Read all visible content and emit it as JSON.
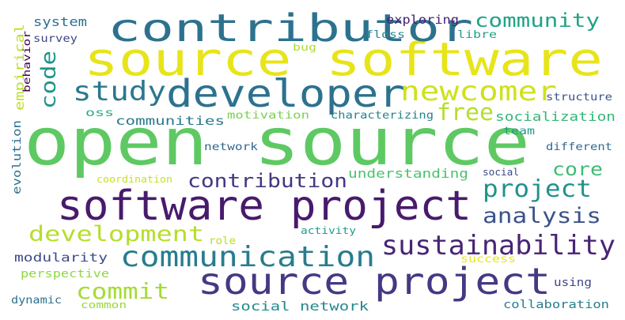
{
  "words": [
    {
      "text": "open source",
      "color": "#5ec962"
    },
    {
      "text": "source software",
      "color": "#e7e419"
    },
    {
      "text": "software project",
      "color": "#481a6c"
    },
    {
      "text": "contributor",
      "color": "#2c728e"
    },
    {
      "text": "developer",
      "color": "#2c728e"
    },
    {
      "text": "source project",
      "color": "#443983"
    },
    {
      "text": "communication",
      "color": "#287c8e"
    },
    {
      "text": "sustainability",
      "color": "#482475"
    },
    {
      "text": "newcomer",
      "color": "#d0e11c"
    },
    {
      "text": "study",
      "color": "#2a788e"
    },
    {
      "text": "development",
      "color": "#b5de2b"
    },
    {
      "text": "contribution",
      "color": "#453781"
    },
    {
      "text": "project",
      "color": "#21918c"
    },
    {
      "text": "analysis",
      "color": "#3b528b"
    },
    {
      "text": "free",
      "color": "#b5de2b"
    },
    {
      "text": "community",
      "color": "#20a386"
    },
    {
      "text": "commit",
      "color": "#a5db36"
    },
    {
      "text": "core",
      "color": "#3dbc74"
    },
    {
      "text": "code",
      "color": "#1f968b"
    },
    {
      "text": "communities",
      "color": "#2a788e"
    },
    {
      "text": "system",
      "color": "#2e6f8e"
    },
    {
      "text": "exploring",
      "color": "#482173"
    },
    {
      "text": "empirical",
      "color": "#bddf26"
    },
    {
      "text": "understanding",
      "color": "#4ac16d"
    },
    {
      "text": "socialization",
      "color": "#35b779"
    },
    {
      "text": "social network",
      "color": "#23888e"
    },
    {
      "text": "modularity",
      "color": "#3e4a89"
    },
    {
      "text": "floss",
      "color": "#24878e"
    },
    {
      "text": "libre",
      "color": "#1fa187"
    },
    {
      "text": "survey",
      "color": "#414487"
    },
    {
      "text": "behavior",
      "color": "#440154"
    },
    {
      "text": "bug",
      "color": "#addc30"
    },
    {
      "text": "oss",
      "color": "#25ab82"
    },
    {
      "text": "motivation",
      "color": "#7ad151"
    },
    {
      "text": "characterizing",
      "color": "#26828e"
    },
    {
      "text": "structure",
      "color": "#3b528b"
    },
    {
      "text": "team",
      "color": "#1e9c89"
    },
    {
      "text": "network",
      "color": "#31688e"
    },
    {
      "text": "different",
      "color": "#306a8e"
    },
    {
      "text": "evolution",
      "color": "#2c718e"
    },
    {
      "text": "coordination",
      "color": "#c8e020"
    },
    {
      "text": "social",
      "color": "#3e4989"
    },
    {
      "text": "role",
      "color": "#b8de29"
    },
    {
      "text": "activity",
      "color": "#1e9b8a"
    },
    {
      "text": "success",
      "color": "#eae51a"
    },
    {
      "text": "perspective",
      "color": "#8fd744"
    },
    {
      "text": "using",
      "color": "#3f4788"
    },
    {
      "text": "dynamic",
      "color": "#2d718e"
    },
    {
      "text": "common",
      "color": "#95d840"
    },
    {
      "text": "collaboration",
      "color": "#287d8e"
    }
  ]
}
